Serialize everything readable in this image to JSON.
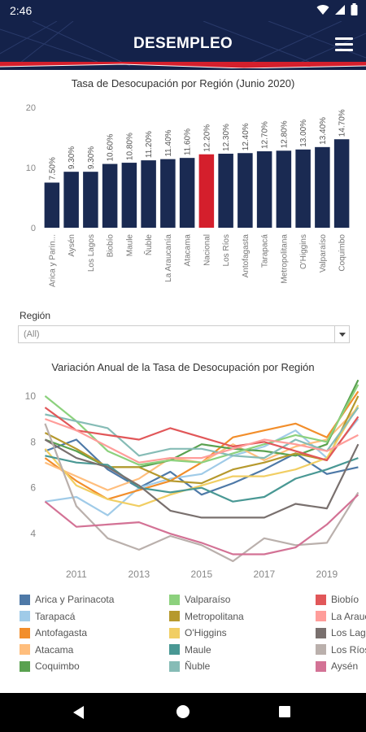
{
  "status_bar": {
    "time": "2:46"
  },
  "header": {
    "title": "DESEMPLEO"
  },
  "filter": {
    "label": "Región",
    "value": "(All)"
  },
  "chart_data": [
    {
      "type": "bar",
      "title": "Tasa de Desocupación por Región (Junio 2020)",
      "categories": [
        "Arica y Parin...",
        "Aysén",
        "Los Lagos",
        "Biobío",
        "Maule",
        "Ñuble",
        "La Araucanía",
        "Atacama",
        "Nacional",
        "Los Ríos",
        "Antofagasta",
        "Tarapacá",
        "Metropolitana",
        "O'Higgins",
        "Valparaíso",
        "Coquimbo"
      ],
      "values": [
        7.5,
        9.3,
        9.3,
        10.6,
        10.8,
        11.2,
        11.4,
        11.6,
        12.2,
        12.3,
        12.4,
        12.7,
        12.8,
        13.0,
        13.4,
        14.7
      ],
      "value_labels": [
        "7.50%",
        "9.30%",
        "9.30%",
        "10.60%",
        "10.80%",
        "11.20%",
        "11.40%",
        "11.60%",
        "12.20%",
        "12.30%",
        "12.40%",
        "12.70%",
        "12.80%",
        "13.00%",
        "13.40%",
        "14.70%"
      ],
      "yticks": [
        "0",
        "10",
        "20"
      ],
      "ylim": [
        0,
        20
      ],
      "highlight_category": "Nacional",
      "colors": {
        "bar": "#1a2a52",
        "highlight": "#d41f2c"
      },
      "grid": false
    },
    {
      "type": "line",
      "title": "Variación Anual de la Tasa de Desocupación por Región",
      "x": [
        2010,
        2011,
        2012,
        2013,
        2014,
        2015,
        2016,
        2017,
        2018,
        2019,
        2020
      ],
      "xticks": [
        "2011",
        "2013",
        "2015",
        "2017",
        "2019"
      ],
      "yticks": [
        "4",
        "6",
        "8",
        "10"
      ],
      "xlim": [
        2009.6,
        2020.25
      ],
      "ylim": [
        2.8,
        10.6
      ],
      "grid": false,
      "series": [
        {
          "name": "Arica y Parinacota",
          "color": "#4e79a7",
          "values": [
            7.6,
            8.1,
            6.8,
            6.0,
            6.7,
            5.7,
            6.2,
            6.8,
            7.5,
            6.6,
            6.9
          ]
        },
        {
          "name": "Tarapacá",
          "color": "#a0cbe8",
          "values": [
            5.4,
            5.6,
            4.8,
            6.0,
            6.4,
            6.6,
            7.4,
            7.8,
            8.5,
            7.3,
            9.0
          ]
        },
        {
          "name": "Antofagasta",
          "color": "#f28e2b",
          "values": [
            7.3,
            6.3,
            5.5,
            5.9,
            6.3,
            7.1,
            8.2,
            8.5,
            8.8,
            8.2,
            10.2
          ]
        },
        {
          "name": "Atacama",
          "color": "#ffbe7d",
          "values": [
            7.1,
            6.5,
            5.9,
            6.4,
            7.3,
            7.1,
            7.9,
            7.2,
            7.8,
            8.1,
            9.5
          ]
        },
        {
          "name": "Coquimbo",
          "color": "#59a14f",
          "values": [
            8.1,
            7.6,
            6.9,
            6.9,
            7.2,
            7.9,
            7.7,
            7.6,
            7.4,
            7.9,
            10.7
          ]
        },
        {
          "name": "Valparaíso",
          "color": "#8cd17d",
          "values": [
            10.0,
            8.9,
            7.6,
            7.0,
            7.2,
            7.1,
            7.5,
            7.9,
            8.3,
            8.0,
            10.5
          ]
        },
        {
          "name": "Metropolitana",
          "color": "#b6992d",
          "values": [
            8.4,
            7.7,
            6.9,
            6.9,
            6.3,
            6.2,
            6.8,
            7.1,
            7.5,
            7.2,
            10.0
          ]
        },
        {
          "name": "O'Higgins",
          "color": "#f1ce63",
          "values": [
            7.7,
            6.1,
            5.5,
            5.2,
            5.7,
            6.1,
            6.5,
            6.5,
            6.8,
            7.3,
            9.6
          ]
        },
        {
          "name": "Maule",
          "color": "#499894",
          "values": [
            7.4,
            7.1,
            7.0,
            6.0,
            5.8,
            6.0,
            5.4,
            5.6,
            6.4,
            6.8,
            7.3
          ]
        },
        {
          "name": "Ñuble",
          "color": "#86bcb6",
          "values": [
            9.2,
            8.9,
            8.6,
            7.4,
            7.7,
            7.7,
            7.4,
            7.3,
            8.1,
            7.6,
            9.5
          ]
        },
        {
          "name": "Biobío",
          "color": "#e15759",
          "values": [
            9.5,
            8.5,
            8.3,
            8.1,
            8.6,
            8.2,
            7.8,
            8.0,
            7.6,
            7.2,
            9.1
          ]
        },
        {
          "name": "La Araucanía",
          "color": "#ff9d9a",
          "values": [
            9.0,
            8.5,
            7.8,
            7.1,
            7.3,
            7.3,
            7.7,
            8.1,
            7.9,
            7.6,
            8.3
          ]
        },
        {
          "name": "Los Lagos",
          "color": "#79706e",
          "values": [
            8.1,
            7.3,
            6.9,
            6.1,
            5.0,
            4.7,
            4.7,
            4.7,
            5.3,
            5.1,
            7.9
          ]
        },
        {
          "name": "Los Ríos",
          "color": "#bab0ac",
          "values": [
            8.8,
            5.2,
            3.8,
            3.3,
            3.9,
            3.5,
            2.8,
            3.8,
            3.5,
            3.6,
            5.8
          ]
        },
        {
          "name": "Aysén",
          "color": "#d37295",
          "values": [
            5.4,
            4.3,
            4.4,
            4.5,
            4.0,
            3.6,
            3.1,
            3.1,
            3.4,
            4.4,
            5.7
          ]
        }
      ]
    }
  ]
}
